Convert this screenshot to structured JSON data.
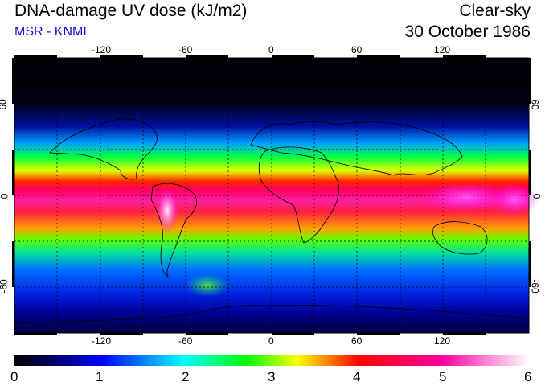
{
  "header": {
    "title": "DNA-damage UV dose (kJ/m2)",
    "source": "MSR - KNMI",
    "condition": "Clear-sky",
    "date": "30 October 1986"
  },
  "map": {
    "lon_ticks": [
      "-120",
      "-60",
      "0",
      "60",
      "120"
    ],
    "lat_ticks_left": [
      "60",
      "0",
      "-60"
    ],
    "lat_ticks_right": [
      "60",
      "0",
      "-60"
    ],
    "grid_lon_step": 30,
    "grid_lat_step": 30,
    "grid_lines": true,
    "projection": "equirectangular"
  },
  "colorbar": {
    "labels": [
      "0",
      "1",
      "2",
      "3",
      "4",
      "5",
      "6"
    ],
    "colors": [
      "#000000",
      "#0000ff",
      "#00ffff",
      "#00ff00",
      "#ffff00",
      "#ff0000",
      "#ff00ff",
      "#ffffff"
    ]
  }
}
